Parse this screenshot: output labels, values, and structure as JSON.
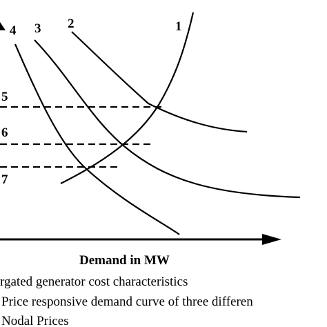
{
  "diagram": {
    "curve_labels": {
      "c1": "1",
      "c2": "2",
      "c3": "3",
      "c4": "4"
    },
    "price_labels": {
      "p5": "5",
      "p6": "6",
      "p7": "7"
    },
    "x_axis_title": "Demand in MW",
    "captions": [
      "rgated generator cost characteristics",
      "Price responsive demand curve of three differen",
      "Nodal Prices"
    ]
  }
}
